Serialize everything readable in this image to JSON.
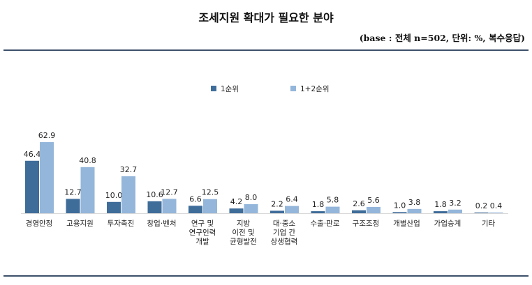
{
  "title": "조세지원 확대가 필요한 분야",
  "subtitle": "(base : 전체 n=502, 단위: %, 복수응답)",
  "colors": {
    "series1": "#3f6d9a",
    "series2": "#94b6da",
    "rule": "#3d4f6b"
  },
  "chart_data": {
    "type": "bar",
    "categories": [
      [
        "경영안정"
      ],
      [
        "고용지원"
      ],
      [
        "투자촉진"
      ],
      [
        "창업·벤처"
      ],
      [
        "연구 및",
        "연구인력",
        "개발"
      ],
      [
        "지방",
        "이전 및",
        "균형발전"
      ],
      [
        "대·중소",
        "기업 간",
        "상생협력"
      ],
      [
        "수출·판로"
      ],
      [
        "구조조정"
      ],
      [
        "개별산업"
      ],
      [
        "가업승계"
      ],
      [
        "기타"
      ]
    ],
    "series": [
      {
        "name": "1순위",
        "values": [
          46.4,
          12.7,
          10.0,
          10.6,
          6.6,
          4.2,
          2.2,
          1.8,
          2.6,
          1.0,
          1.8,
          0.2
        ]
      },
      {
        "name": "1+2순위",
        "values": [
          62.9,
          40.8,
          32.7,
          12.7,
          12.5,
          8.0,
          6.4,
          5.8,
          5.6,
          3.8,
          3.2,
          0.4
        ]
      }
    ],
    "value_labels": [
      [
        "46.4",
        "12.7",
        "10.0",
        "10.6",
        "6.6",
        "4.2",
        "2.2",
        "1.8",
        "2.6",
        "1.0",
        "1.8",
        "0.2"
      ],
      [
        "62.9",
        "40.8",
        "32.7",
        "12.7",
        "12.5",
        "8.0",
        "6.4",
        "5.8",
        "5.6",
        "3.8",
        "3.2",
        "0.4"
      ]
    ],
    "legend_position": "top-center",
    "grid": false,
    "ylim": [
      0,
      70
    ]
  }
}
